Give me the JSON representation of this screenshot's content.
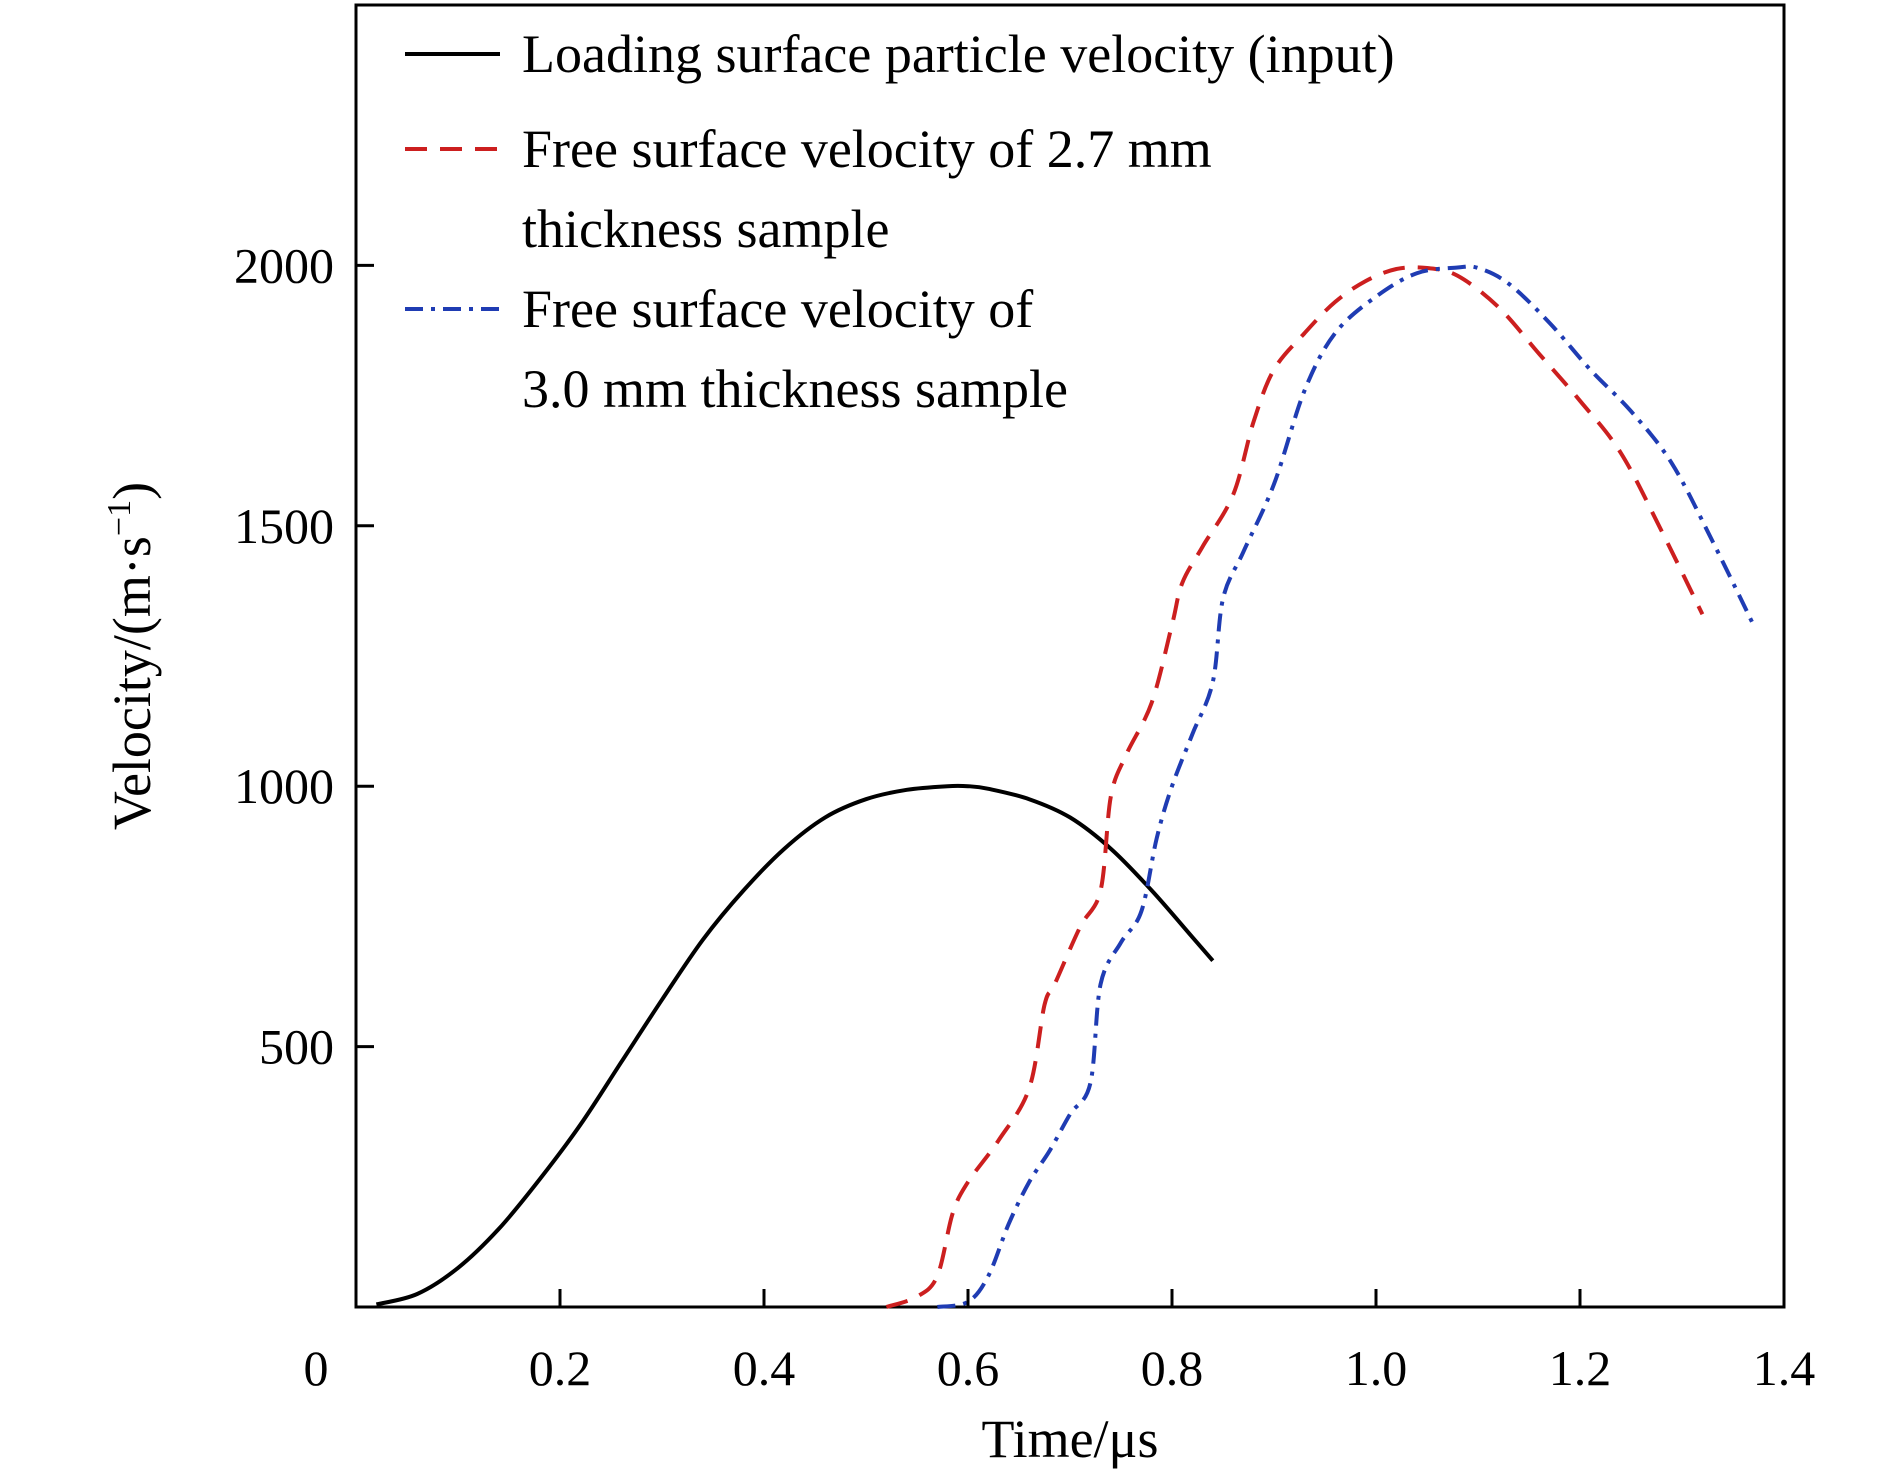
{
  "chart_data": {
    "type": "line",
    "xlabel": "Time/μs",
    "ylabel": "Velocity/(m·s",
    "ylabel_superscript": "−1",
    "ylabel_close": ")",
    "xlim": [
      0,
      1.4
    ],
    "ylim": [
      0,
      2500
    ],
    "x_origin_label": "0",
    "xticks": [
      0.2,
      0.4,
      0.6,
      0.8,
      1.0,
      1.2,
      1.4
    ],
    "xtick_labels": [
      "0.2",
      "0.4",
      "0.6",
      "0.8",
      "1.0",
      "1.2",
      "1.4"
    ],
    "yticks": [
      500,
      1000,
      1500,
      2000
    ],
    "ytick_labels": [
      "500",
      "1000",
      "1500",
      "2000"
    ],
    "grid": false,
    "legend_position": "top-left",
    "series": [
      {
        "name_lines": [
          "Loading surface particle velocity (input)"
        ],
        "color": "#000000",
        "style": "solid",
        "x": [
          0.02,
          0.06,
          0.1,
          0.14,
          0.18,
          0.22,
          0.26,
          0.3,
          0.34,
          0.38,
          0.42,
          0.46,
          0.5,
          0.54,
          0.58,
          0.6,
          0.62,
          0.66,
          0.7,
          0.74,
          0.78,
          0.82,
          0.84
        ],
        "y": [
          5,
          25,
          75,
          150,
          245,
          350,
          470,
          590,
          705,
          800,
          880,
          940,
          975,
          993,
          1000,
          1000,
          995,
          975,
          940,
          880,
          800,
          710,
          665
        ]
      },
      {
        "name_lines": [
          "Free surface velocity of 2.7 mm",
          "thickness sample"
        ],
        "color": "#cc1f1f",
        "style": "dashed",
        "x": [
          0.52,
          0.55,
          0.57,
          0.585,
          0.6,
          0.63,
          0.66,
          0.675,
          0.685,
          0.71,
          0.73,
          0.74,
          0.755,
          0.78,
          0.8,
          0.81,
          0.83,
          0.86,
          0.88,
          0.9,
          0.93,
          0.96,
          0.99,
          1.02,
          1.05,
          1.08,
          1.12,
          1.16,
          1.2,
          1.24,
          1.28,
          1.32
        ],
        "y": [
          0,
          20,
          60,
          180,
          240,
          320,
          420,
          580,
          620,
          730,
          800,
          980,
          1060,
          1160,
          1310,
          1390,
          1460,
          1560,
          1700,
          1800,
          1870,
          1930,
          1970,
          1993,
          1995,
          1980,
          1920,
          1830,
          1740,
          1640,
          1490,
          1330
        ]
      },
      {
        "name_lines": [
          "Free surface velocity of",
          "3.0 mm thickness sample"
        ],
        "color": "#1f3cb3",
        "style": "dashdot",
        "x": [
          0.57,
          0.6,
          0.62,
          0.64,
          0.66,
          0.68,
          0.7,
          0.72,
          0.73,
          0.75,
          0.77,
          0.785,
          0.8,
          0.82,
          0.84,
          0.85,
          0.87,
          0.9,
          0.93,
          0.96,
          1.0,
          1.04,
          1.08,
          1.1,
          1.13,
          1.17,
          1.21,
          1.25,
          1.29,
          1.33,
          1.37
        ],
        "y": [
          0,
          10,
          60,
          160,
          240,
          300,
          370,
          430,
          620,
          700,
          760,
          900,
          1000,
          1100,
          1200,
          1360,
          1450,
          1580,
          1760,
          1870,
          1940,
          1985,
          1996,
          1995,
          1965,
          1890,
          1800,
          1720,
          1620,
          1470,
          1310
        ]
      }
    ]
  }
}
